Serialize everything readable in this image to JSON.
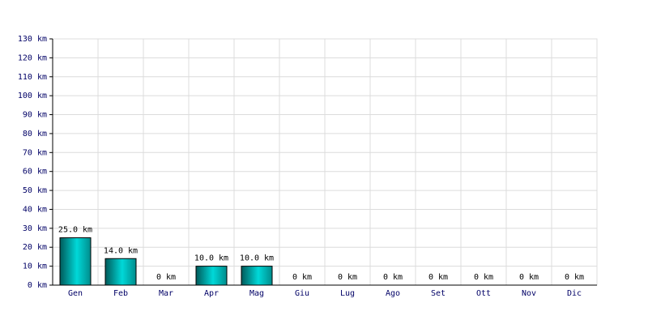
{
  "chart_data": {
    "type": "bar",
    "categories": [
      "Gen",
      "Feb",
      "Mar",
      "Apr",
      "Mag",
      "Giu",
      "Lug",
      "Ago",
      "Set",
      "Ott",
      "Nov",
      "Dic"
    ],
    "values": [
      25,
      14,
      0,
      10,
      10,
      0,
      0,
      0,
      0,
      0,
      0,
      0
    ],
    "value_labels": [
      "25.0 km",
      "14.0 km",
      "0 km",
      "10.0 km",
      "10.0 km",
      "0 km",
      "0 km",
      "0 km",
      "0 km",
      "0 km",
      "0 km",
      "0 km"
    ],
    "color": "#00d8d8",
    "ylim": [
      0,
      130
    ],
    "yticks": [
      {
        "value": 0,
        "label": "0 km"
      },
      {
        "value": 10,
        "label": "10 km"
      },
      {
        "value": 20,
        "label": "20 km"
      },
      {
        "value": 30,
        "label": "30 km"
      },
      {
        "value": 40,
        "label": "40 km"
      },
      {
        "value": 50,
        "label": "50 km"
      },
      {
        "value": 60,
        "label": "60 km"
      },
      {
        "value": 70,
        "label": "70 km"
      },
      {
        "value": 80,
        "label": "80 km"
      },
      {
        "value": 90,
        "label": "90 km"
      },
      {
        "value": 100,
        "label": "100 km"
      },
      {
        "value": 110,
        "label": "110 km"
      },
      {
        "value": 120,
        "label": "120 km"
      },
      {
        "value": 130,
        "label": "130 km"
      }
    ],
    "grid": true
  }
}
